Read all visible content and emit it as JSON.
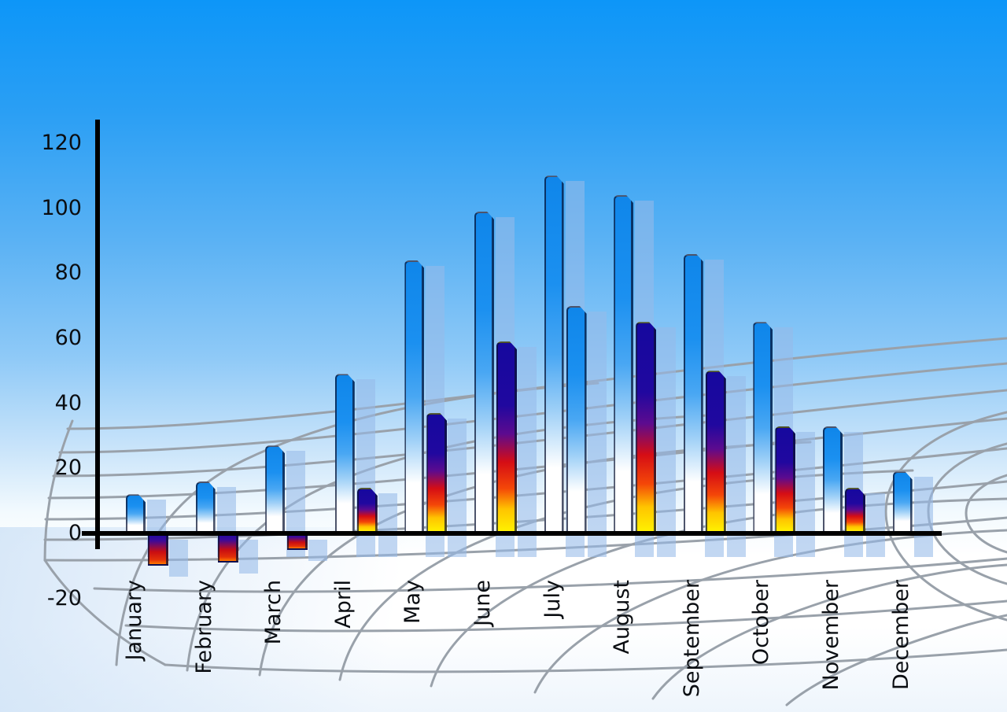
{
  "chart_data": {
    "type": "bar",
    "title": "",
    "categories": [
      "January",
      "February",
      "March",
      "April",
      "May",
      "June",
      "July",
      "August",
      "September",
      "October",
      "November",
      "December"
    ],
    "series": [
      {
        "name": "primary-blue-series",
        "values": [
          12,
          16,
          27,
          49,
          84,
          99,
          110,
          104,
          86,
          65,
          33,
          19
        ]
      },
      {
        "name": "secondary-fire-series",
        "values": [
          -10,
          -9,
          -5,
          14,
          37,
          59,
          70,
          65,
          50,
          33,
          14,
          null
        ]
      }
    ],
    "secondary_bar_style": [
      "fireneg",
      "fireneg",
      "fireneg",
      "fire",
      "fire",
      "fire",
      "blue",
      "fire",
      "fire",
      "fire",
      "fire",
      "none"
    ],
    "y_ticks": [
      120,
      100,
      80,
      60,
      40,
      20,
      0,
      -20
    ],
    "ylim": [
      -20,
      130
    ],
    "x_label_rotation_deg": -90,
    "grid": "curved-perspective-ground-mesh",
    "legend": "none"
  },
  "colors": {
    "sky_top": "#0d96f8",
    "sky_horizon": "#ffffff",
    "page_bottom_tint": "#e7f1fb",
    "bar_blue_top": "#0f86ea",
    "bar_blue_bottom": "#ffffff",
    "fire_navy": "#16089e",
    "fire_red": "#d50d15",
    "fire_yellow": "#fff200",
    "bar_shadow": "rgba(150,186,232,0.58)",
    "grid_line": "#99a1aa",
    "axis_line": "#000000",
    "label_text": "#0b0e12"
  }
}
